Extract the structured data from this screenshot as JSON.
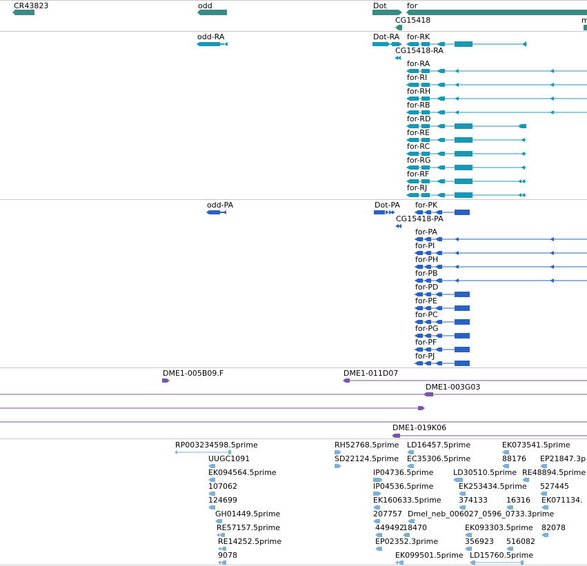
{
  "colors": {
    "gene": "#3a8a86",
    "transcript": "#1898b4",
    "protein": "#2a62c2",
    "clone": "#7a55a8",
    "est": "#7bb1d8",
    "separator": "#c8c8c8"
  },
  "tracks": [
    {
      "id": "genes",
      "features": [
        {
          "label": "CR43823",
          "kind": "gene"
        },
        {
          "label": "odd",
          "kind": "gene"
        },
        {
          "label": "Dot",
          "kind": "gene"
        },
        {
          "label": "for",
          "kind": "gene"
        },
        {
          "label": "CG15418",
          "kind": "gene"
        },
        {
          "label": "m",
          "kind": "gene"
        }
      ]
    },
    {
      "id": "transcripts",
      "features": [
        {
          "label": "odd-RA"
        },
        {
          "label": "Dot-RA"
        },
        {
          "label": "for-RK"
        },
        {
          "label": "CG15418-RA"
        },
        {
          "label": "for-RA"
        },
        {
          "label": "for-RI"
        },
        {
          "label": "for-RH"
        },
        {
          "label": "for-RB"
        },
        {
          "label": "for-RD"
        },
        {
          "label": "for-RE"
        },
        {
          "label": "for-RC"
        },
        {
          "label": "for-RG"
        },
        {
          "label": "for-RF"
        },
        {
          "label": "for-RJ"
        }
      ]
    },
    {
      "id": "proteins",
      "features": [
        {
          "label": "odd-PA"
        },
        {
          "label": "Dot-PA"
        },
        {
          "label": "for-PK"
        },
        {
          "label": "CG15418-PA"
        },
        {
          "label": "for-PA"
        },
        {
          "label": "for-PI"
        },
        {
          "label": "for-PH"
        },
        {
          "label": "for-PB"
        },
        {
          "label": "for-PD"
        },
        {
          "label": "for-PE"
        },
        {
          "label": "for-PC"
        },
        {
          "label": "for-PG"
        },
        {
          "label": "for-PF"
        },
        {
          "label": "for-PJ"
        }
      ]
    },
    {
      "id": "clones",
      "features": [
        {
          "label": "DME1-005B09.F"
        },
        {
          "label": "DME1-011D07"
        },
        {
          "label": "DME1-003G03"
        },
        {
          "label": "DME1-019K06"
        }
      ]
    },
    {
      "id": "ests",
      "features": [
        {
          "label": "RP003234598.5prime"
        },
        {
          "label": "RH52768.5prime"
        },
        {
          "label": "LD16457.5prime"
        },
        {
          "label": "EK073541.5prime"
        },
        {
          "label": "UUGC1091"
        },
        {
          "label": "SD22124.5prime"
        },
        {
          "label": "EC35306.5prime"
        },
        {
          "label": "88176"
        },
        {
          "label": "EP21847.3p"
        },
        {
          "label": "EK094564.5prime"
        },
        {
          "label": "IP04736.5prime"
        },
        {
          "label": "LD30510.5prime"
        },
        {
          "label": "RE48894.5prime"
        },
        {
          "label": "107062"
        },
        {
          "label": "IP04536.5prime"
        },
        {
          "label": "EK253434.5prime"
        },
        {
          "label": "527445"
        },
        {
          "label": "124699"
        },
        {
          "label": "EK160633.5prime"
        },
        {
          "label": "374133"
        },
        {
          "label": "16316"
        },
        {
          "label": "EK071134."
        },
        {
          "label": "GH01449.5prime"
        },
        {
          "label": "207757"
        },
        {
          "label": "Dmel_neb_006027_0596_0733.3prime"
        },
        {
          "label": "RE57157.5prime"
        },
        {
          "label": "449492"
        },
        {
          "label": "18470"
        },
        {
          "label": "EK093303.5prime"
        },
        {
          "label": "82078"
        },
        {
          "label": "RE14252.5prime"
        },
        {
          "label": "EP02352.3prime"
        },
        {
          "label": "356923"
        },
        {
          "label": "516082"
        },
        {
          "label": "9078"
        },
        {
          "label": "EK099501.5prime"
        },
        {
          "label": "LD15760.5prime"
        }
      ]
    }
  ]
}
